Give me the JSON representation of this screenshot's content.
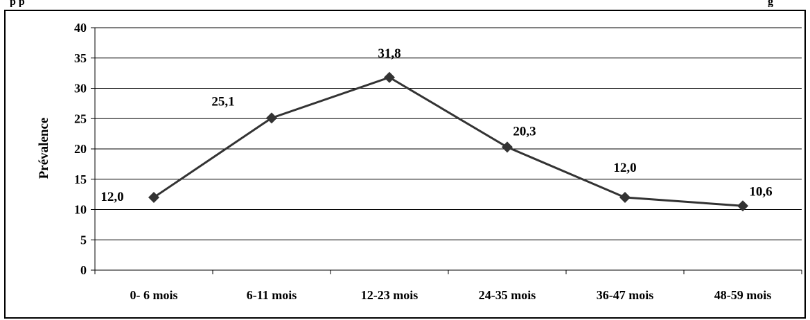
{
  "header_fragment": {
    "left_text": "p p",
    "right_text": "g"
  },
  "chart_data": {
    "type": "line",
    "categories": [
      "0- 6 mois",
      "6-11 mois",
      "12-23 mois",
      "24-35 mois",
      "36-47 mois",
      "48-59 mois"
    ],
    "series": [
      {
        "values": [
          12.0,
          25.1,
          31.8,
          20.3,
          12.0,
          10.6
        ],
        "data_labels": [
          "12,0",
          "25,1",
          "31,8",
          "20,3",
          "12,0",
          "10,6"
        ]
      }
    ],
    "ylabel": "Prévalence",
    "xlabel": "",
    "ylim": [
      0,
      40
    ],
    "yticks": [
      0,
      5,
      10,
      15,
      20,
      25,
      30,
      35,
      40
    ],
    "grid": true,
    "line_color": "#333333",
    "marker": "diamond"
  }
}
